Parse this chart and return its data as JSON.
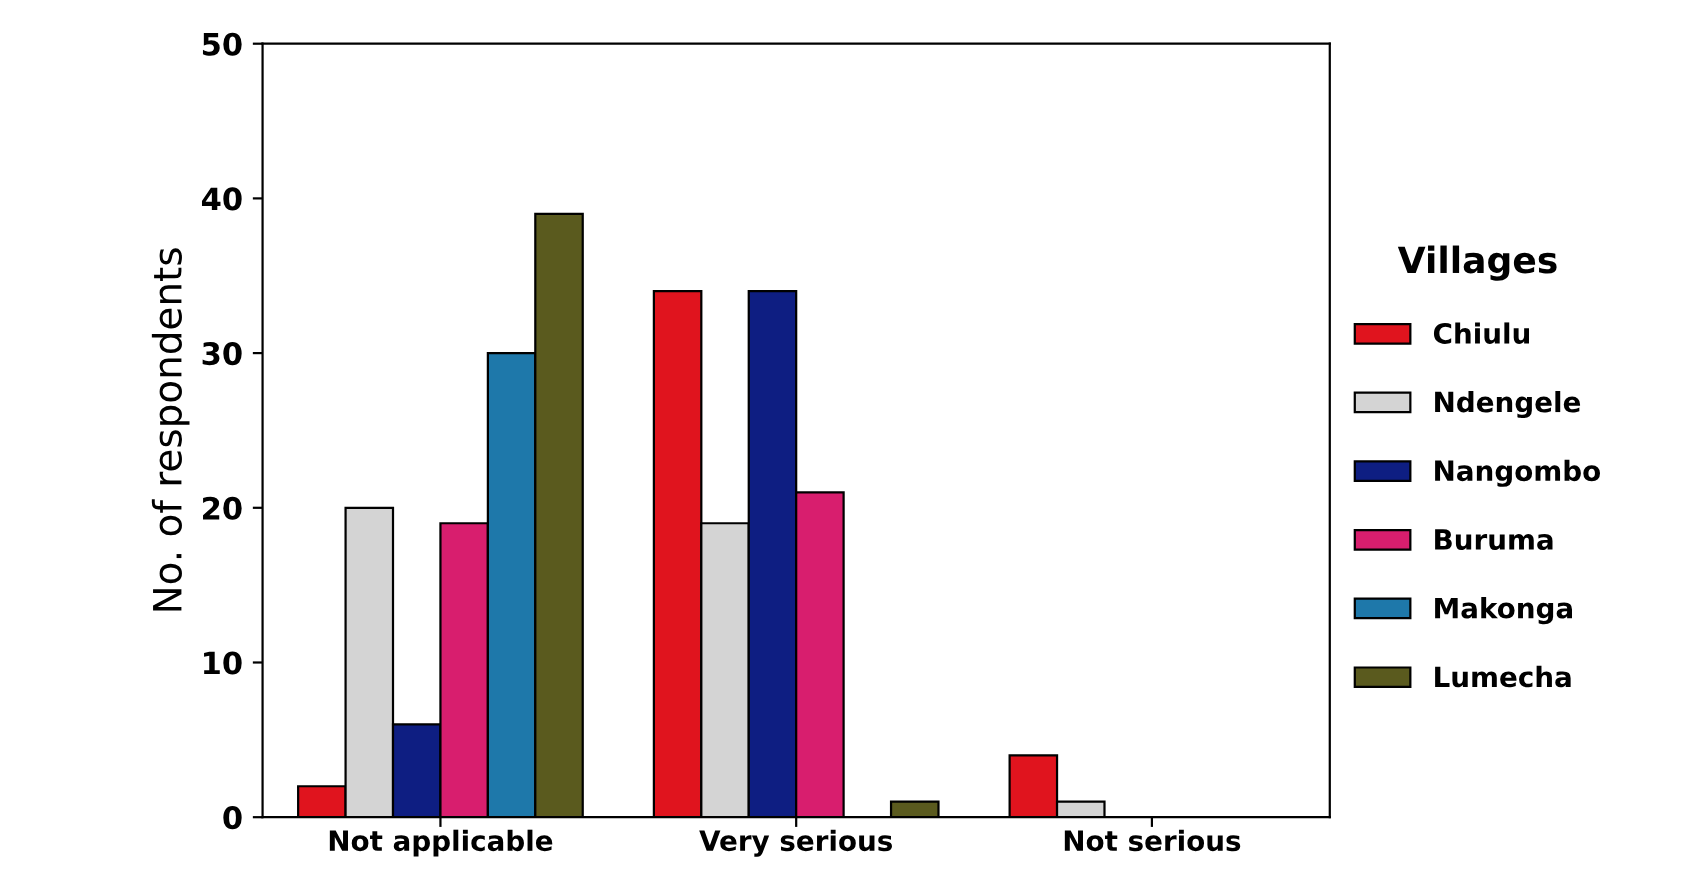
{
  "chart_data": {
    "type": "bar",
    "ylabel": "No. of respondents",
    "legend_title": "Villages",
    "categories": [
      "Not applicable",
      "Very serious",
      "Not serious"
    ],
    "series": [
      {
        "name": "Chiulu",
        "color": "#e0141e",
        "values": [
          2,
          34,
          4
        ]
      },
      {
        "name": "Ndengele",
        "color": "#d4d4d4",
        "values": [
          20,
          19,
          1
        ]
      },
      {
        "name": "Nangombo",
        "color": "#0e1e82",
        "values": [
          6,
          34,
          0
        ]
      },
      {
        "name": "Buruma",
        "color": "#d81e6e",
        "values": [
          19,
          21,
          0
        ]
      },
      {
        "name": "Makonga",
        "color": "#1e78aa",
        "values": [
          30,
          0,
          0
        ]
      },
      {
        "name": "Lumecha",
        "color": "#5a5a1e",
        "values": [
          39,
          1,
          0
        ]
      }
    ],
    "ylim": [
      0,
      50
    ],
    "yticks": [
      0,
      10,
      20,
      30,
      40,
      50
    ],
    "grid": false,
    "legend": "right"
  }
}
